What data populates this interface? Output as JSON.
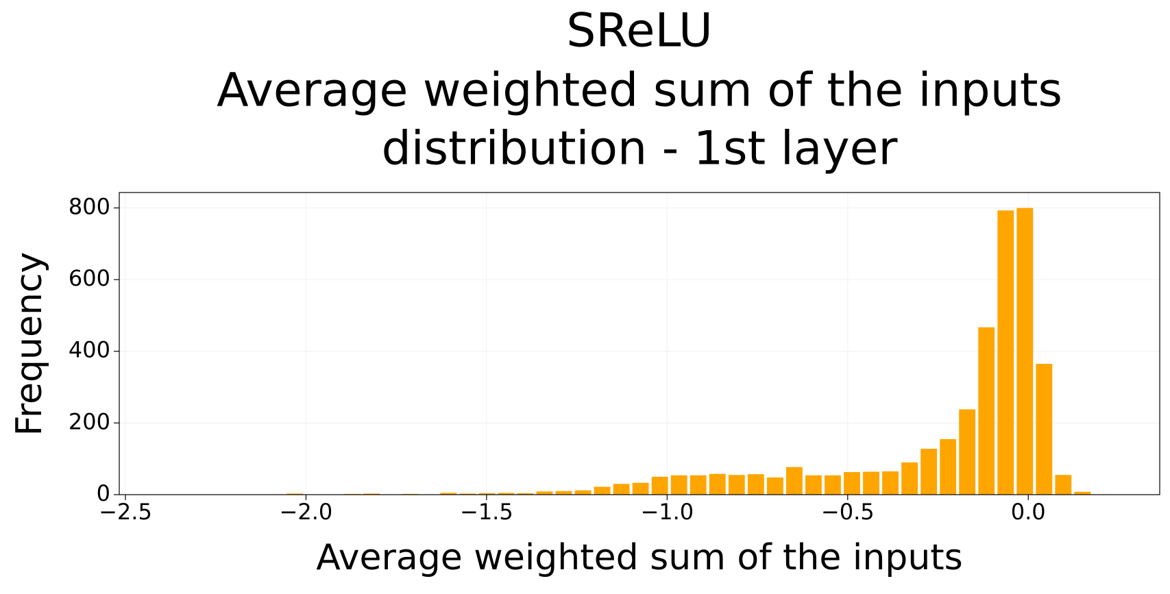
{
  "chart_data": {
    "type": "histogram",
    "title": [
      "SReLU",
      "Average weighted sum of the inputs",
      "distribution - 1st layer"
    ],
    "x_label": "Average weighted sum of the inputs",
    "y_label": "Frequency",
    "color": "#ffa500",
    "grid": true,
    "bins": [
      -2.43,
      -2.3768,
      -2.3236,
      -2.2704,
      -2.2172,
      -2.164,
      -2.1108,
      -2.0576,
      -2.0044,
      -1.9512,
      -1.898,
      -1.8448,
      -1.7916,
      -1.7384,
      -1.6852,
      -1.632,
      -1.5788,
      -1.5256,
      -1.4724,
      -1.4192,
      -1.366,
      -1.3128,
      -1.2596,
      -1.2064,
      -1.1532,
      -1.1,
      -1.0468,
      -0.9936,
      -0.9404,
      -0.8872,
      -0.834,
      -0.7808,
      -0.7276,
      -0.6744,
      -0.6212,
      -0.568,
      -0.5148,
      -0.4616,
      -0.4084,
      -0.3552,
      -0.302,
      -0.2488,
      -0.1956,
      -0.1424,
      -0.0892,
      -0.036,
      0.0172,
      0.0704,
      0.1236,
      0.1768,
      0.23
    ],
    "values": [
      1,
      0,
      0,
      1,
      0,
      0,
      1,
      3,
      0,
      1,
      2,
      3,
      1,
      2,
      1,
      5,
      3,
      4,
      5,
      4,
      9,
      10,
      12,
      22,
      30,
      33,
      50,
      54,
      54,
      58,
      55,
      57,
      48,
      77,
      54,
      54,
      63,
      64,
      65,
      90,
      128,
      155,
      238,
      467,
      793,
      800,
      365,
      55,
      8,
      1
    ],
    "xlim": [
      -2.517,
      0.364
    ],
    "ylim": [
      0,
      843
    ],
    "xticks": [
      {
        "value": -2.5,
        "label": "−2.5"
      },
      {
        "value": -2.0,
        "label": "−2.0"
      },
      {
        "value": -1.5,
        "label": "−1.5"
      },
      {
        "value": -1.0,
        "label": "−1.0"
      },
      {
        "value": -0.5,
        "label": "−0.5"
      },
      {
        "value": 0.0,
        "label": "0.0"
      }
    ],
    "yticks": [
      0,
      200,
      400,
      600,
      800
    ]
  }
}
